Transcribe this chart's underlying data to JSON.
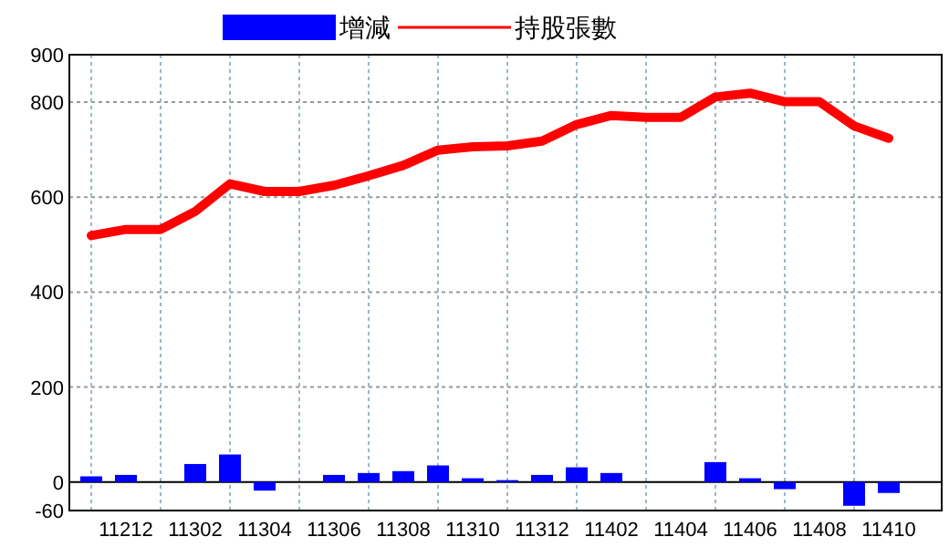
{
  "chart_data": {
    "type": "bar",
    "categories": [
      null,
      "11212",
      null,
      "11302",
      null,
      "11304",
      null,
      "11306",
      null,
      "11308",
      null,
      "11310",
      null,
      "11312",
      null,
      "11402",
      null,
      "11404",
      null,
      "11406",
      null,
      "11408",
      null,
      "11410"
    ],
    "series": [
      {
        "name": "增減",
        "color": "#0000ff",
        "values": [
          12,
          15,
          0,
          38,
          58,
          -18,
          0,
          15,
          19,
          23,
          35,
          8,
          4,
          15,
          31,
          19,
          0,
          0,
          42,
          8,
          -15,
          0,
          -50,
          -23
        ]
      },
      {
        "name": "持股張數",
        "type": "line",
        "color": "#ff0000",
        "values": [
          519,
          532,
          532,
          570,
          628,
          612,
          612,
          625,
          645,
          667,
          699,
          706,
          708,
          718,
          753,
          772,
          768,
          768,
          811,
          819,
          801,
          801,
          750,
          724
        ]
      }
    ],
    "ylim": [
      -60,
      900
    ],
    "yticks": [
      -60,
      0,
      200,
      400,
      600,
      800,
      900
    ],
    "grid": true,
    "legend": "top"
  }
}
